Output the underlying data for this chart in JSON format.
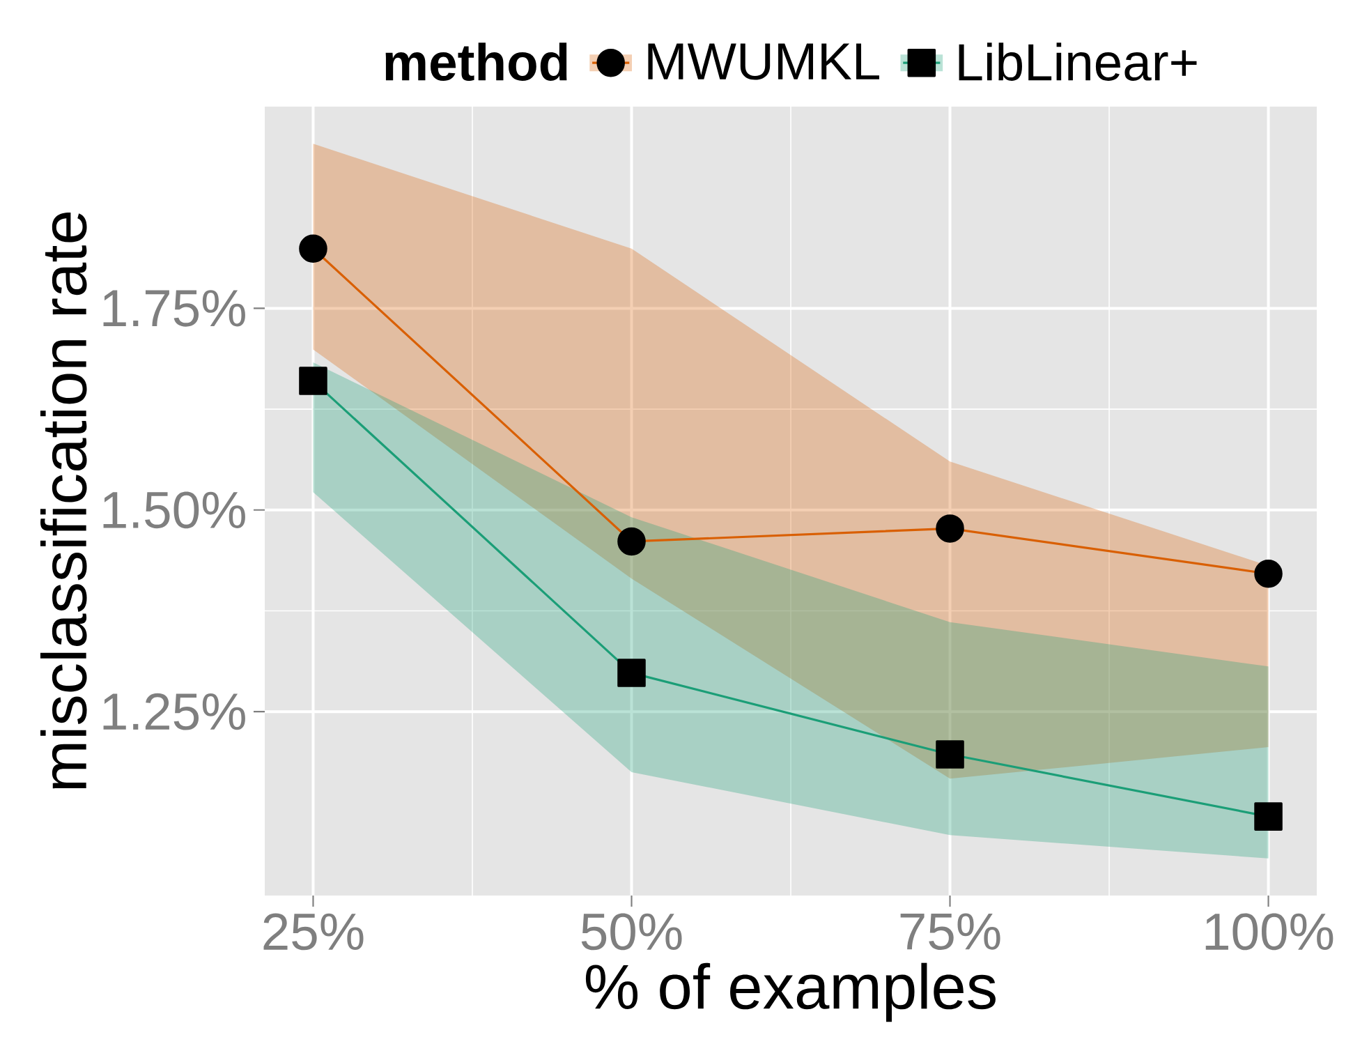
{
  "chart_data": {
    "type": "line",
    "xlabel": "% of examples",
    "ylabel": "misclassification rate",
    "legend_title": "method",
    "x": [
      25,
      50,
      75,
      100
    ],
    "series": [
      {
        "name": "MWUMKL",
        "color": "#d95f02",
        "marker": "circle",
        "values": [
          1.824,
          1.461,
          1.477,
          1.421
        ],
        "lower": [
          1.699,
          1.415,
          1.167,
          1.206
        ],
        "upper": [
          1.954,
          1.824,
          1.56,
          1.431
        ]
      },
      {
        "name": "LibLinear+",
        "color": "#1b9e77",
        "marker": "square",
        "values": [
          1.66,
          1.298,
          1.197,
          1.12
        ],
        "lower": [
          1.522,
          1.175,
          1.097,
          1.068
        ],
        "upper": [
          1.683,
          1.491,
          1.361,
          1.306
        ]
      }
    ],
    "xlim": [
      21.2,
      103.8
    ],
    "ylim": [
      1.022,
      2.0
    ],
    "xticks": [
      {
        "value": 25,
        "label": "25%"
      },
      {
        "value": 50,
        "label": "50%"
      },
      {
        "value": 75,
        "label": "75%"
      },
      {
        "value": 100,
        "label": "100%"
      }
    ],
    "yticks": [
      {
        "value": 1.25,
        "label": "1.25%"
      },
      {
        "value": 1.5,
        "label": "1.50%"
      },
      {
        "value": 1.75,
        "label": "1.75%"
      }
    ],
    "grid": true,
    "legend": "top",
    "line_style": "solid"
  }
}
